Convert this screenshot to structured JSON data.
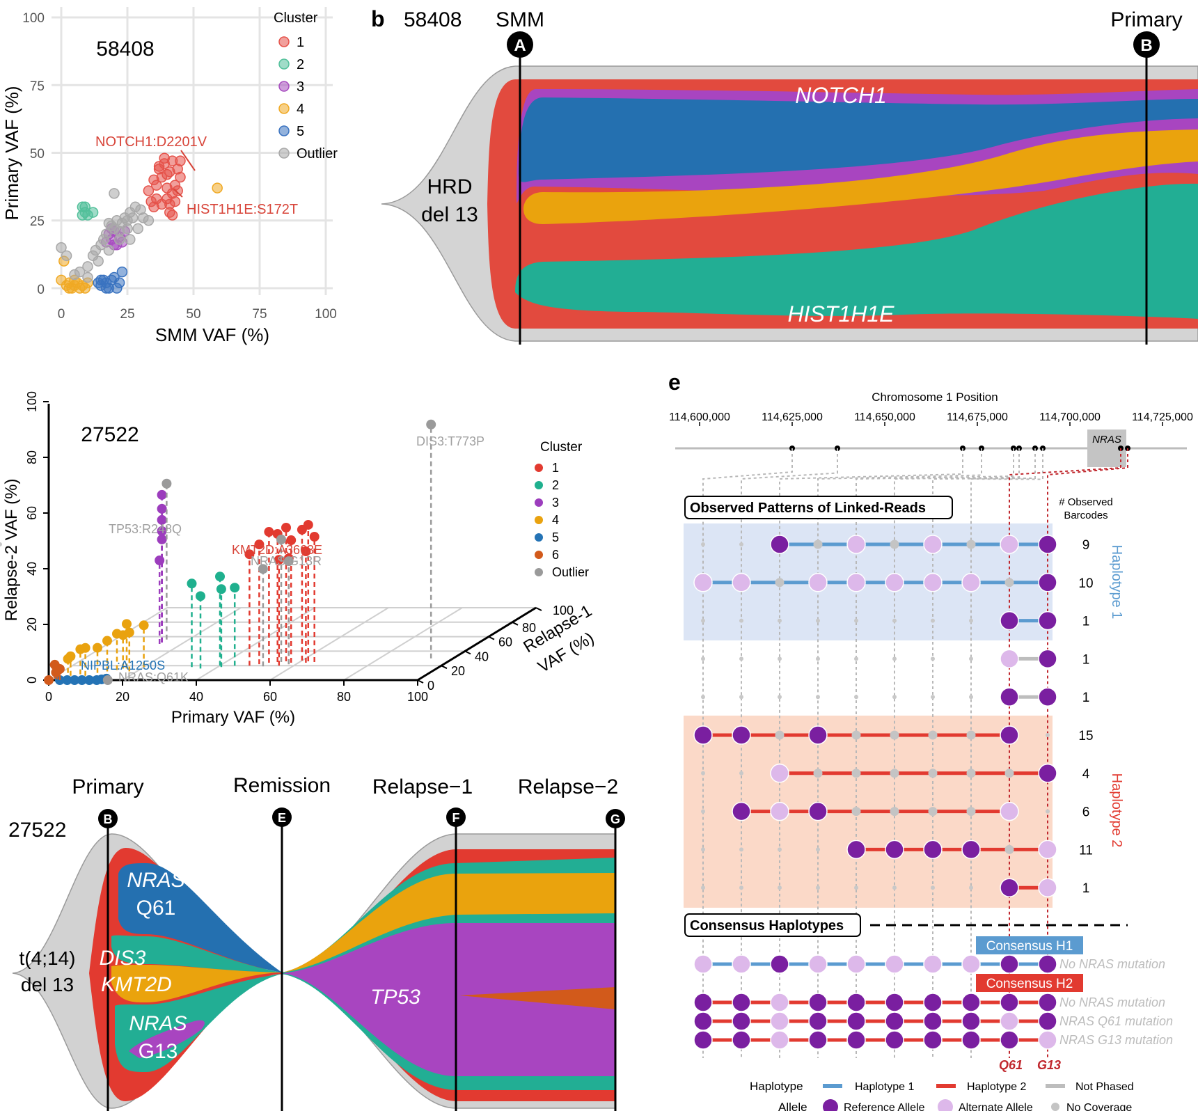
{
  "panel_a": {
    "sample_id": "58408",
    "xlabel": "SMM VAF (%)",
    "ylabel": "Primary VAF (%)",
    "ticks": [
      "0",
      "25",
      "50",
      "75",
      "100"
    ],
    "legend_title": "Cluster",
    "legend": [
      "1",
      "2",
      "3",
      "4",
      "5",
      "Outlier"
    ],
    "colors": [
      "#e5524a",
      "#52c09a",
      "#a84ec0",
      "#f0a924",
      "#3a73c0",
      "#a8a8a8"
    ],
    "annotations": [
      {
        "text": "NOTCH1:D2201V",
        "color": "#d8453a"
      },
      {
        "text": "HIST1H1E:S172T",
        "color": "#d8453a"
      }
    ]
  },
  "panel_b": {
    "letter": "b",
    "sample_id": "58408",
    "timepoints": [
      {
        "name": "SMM",
        "marker": "A"
      },
      {
        "name": "Primary",
        "marker": "B"
      }
    ],
    "founder": [
      "HRD",
      "del 13"
    ],
    "labels": [
      "NOTCH1",
      "HIST1H1E"
    ]
  },
  "panel_c": {
    "sample_id": "27522",
    "xlabel": "Primary VAF (%)",
    "ylabel": "Relapse-2 VAF (%)",
    "zlabel": [
      "Relapse-1",
      "VAF (%)"
    ],
    "x_ticks": [
      "0",
      "20",
      "40",
      "60",
      "80",
      "100"
    ],
    "y_ticks": [
      "0",
      "20",
      "40",
      "60",
      "80",
      "100"
    ],
    "z_ticks": [
      "0",
      "20",
      "40",
      "60",
      "80",
      "100"
    ],
    "legend_title": "Cluster",
    "legend": [
      "1",
      "2",
      "3",
      "4",
      "5",
      "6",
      "Outlier"
    ],
    "colors": [
      "#e23a30",
      "#1fb08e",
      "#9c3dbd",
      "#e9a20f",
      "#2473b5",
      "#d25a1b",
      "#9a9a9a"
    ],
    "annotations": [
      {
        "text": "DIS3:T773P",
        "color": "#a0a0a0"
      },
      {
        "text": "TP53:R248Q",
        "color": "#a0a0a0"
      },
      {
        "text": "KMT2D:A3663E",
        "color": "#d8453a"
      },
      {
        "text": "NRAS:G13R",
        "color": "#a0a0a0"
      },
      {
        "text": "NIPBL:A1250S",
        "color": "#2473b5"
      },
      {
        "text": "NRAS:Q61K",
        "color": "#a0a0a0"
      }
    ]
  },
  "panel_d": {
    "sample_id": "27522",
    "timepoints": [
      {
        "name": "Primary",
        "marker": "B"
      },
      {
        "name": "Remission",
        "marker": "E"
      },
      {
        "name": "Relapse−1",
        "marker": "F"
      },
      {
        "name": "Relapse−2",
        "marker": "G"
      }
    ],
    "founder": [
      "t(4;14)",
      "del 13"
    ],
    "labels": [
      "NRAS",
      "Q61",
      "DIS3",
      "KMT2D",
      "NRAS",
      "G13",
      "TP53"
    ]
  },
  "panel_e": {
    "letter": "e",
    "axis_title": "Chromosome 1 Position",
    "positions": [
      "114,600,000",
      "114,625,000",
      "114,650,000",
      "114,675,000",
      "114,700,000",
      "114,725,000"
    ],
    "gene": "NRAS",
    "observed_title": "Observed Patterns of Linked-Reads",
    "count_header": [
      "# Observed",
      "Barcodes"
    ],
    "haplotype_labels": [
      "Haplotype 1",
      "Haplotype 2"
    ],
    "consensus_title": "Consensus Haplotypes",
    "consensus_h1": "Consensus H1",
    "consensus_h2": "Consensus H2",
    "consensus_notes": [
      "No NRAS mutation",
      "No NRAS mutation",
      "NRAS Q61 mutation",
      "NRAS G13 mutation"
    ],
    "site_labels": [
      "Q61",
      "G13"
    ],
    "rows": [
      {
        "count": "9",
        "hap": 1,
        "pattern": "..RnAnAnAR."
      },
      {
        "count": "10",
        "hap": 1,
        "pattern": "AAnAAAAAnR"
      },
      {
        "count": "1",
        "hap": 1,
        "pattern": "........RR"
      },
      {
        "count": "1",
        "hap": 0,
        "pattern": "........AR"
      },
      {
        "count": "1",
        "hap": 0,
        "pattern": "........RR"
      },
      {
        "count": "15",
        "hap": 2,
        "pattern": "RRnRnnnnR."
      },
      {
        "count": "4",
        "hap": 2,
        "pattern": "..AnnnnnnR"
      },
      {
        "count": "6",
        "hap": 2,
        "pattern": ".RARnnnnA."
      },
      {
        "count": "11",
        "hap": 2,
        "pattern": "....RRRRnA"
      },
      {
        "count": "1",
        "hap": 2,
        "pattern": "........RA"
      }
    ],
    "consensus_rows": [
      {
        "hap": 1,
        "pattern": "AARAAAAARR"
      },
      {
        "hap": 2,
        "pattern": "RRARRRRRRR"
      },
      {
        "hap": 2,
        "pattern": "RRARRRRRAR"
      },
      {
        "hap": 2,
        "pattern": "RRARRRRRRA"
      }
    ],
    "legend": {
      "haplotype_title": "Haplotype",
      "haplotype_items": [
        "Haplotype 1",
        "Haplotype 2",
        "Not Phased"
      ],
      "allele_title": "Allele",
      "allele_items": [
        "Reference Allele",
        "Alternate Allele",
        "No Coverage"
      ]
    },
    "colors": {
      "h1": "#5b9bd0",
      "h2": "#e23a30",
      "np": "#bdbdbd",
      "ref": "#7a1fa0",
      "alt": "#ddb8ea",
      "nc": "#c4c4c4"
    }
  },
  "chart_data": [
    {
      "type": "scatter",
      "title": "58408",
      "xlabel": "SMM VAF (%)",
      "ylabel": "Primary VAF (%)",
      "xlim": [
        0,
        100
      ],
      "ylim": [
        0,
        100
      ],
      "grid": true,
      "legend_placement": "right",
      "series": [
        {
          "name": "1",
          "points": [
            [
              33,
              36
            ],
            [
              35,
              40
            ],
            [
              36,
              38
            ],
            [
              37,
              44
            ],
            [
              38,
              41
            ],
            [
              39,
              46
            ],
            [
              40,
              37
            ],
            [
              41,
              43
            ],
            [
              42,
              47
            ],
            [
              43,
              38
            ],
            [
              44,
              36
            ],
            [
              45,
              41
            ],
            [
              40,
              33
            ],
            [
              42,
              35
            ],
            [
              36,
              33
            ],
            [
              34,
              32
            ],
            [
              38,
              31
            ],
            [
              41,
              31
            ],
            [
              43,
              32
            ],
            [
              45,
              47
            ],
            [
              39,
              48
            ],
            [
              44,
              44
            ],
            [
              37,
              45
            ],
            [
              40,
              42
            ],
            [
              41,
              28
            ],
            [
              42,
              27
            ],
            [
              35,
              30
            ]
          ]
        },
        {
          "name": "2",
          "points": [
            [
              8,
              30
            ],
            [
              9,
              28
            ],
            [
              10,
              27
            ],
            [
              12,
              28
            ],
            [
              8,
              27
            ],
            [
              9,
              30
            ]
          ]
        },
        {
          "name": "3",
          "points": [
            [
              18,
              20
            ],
            [
              19,
              18
            ],
            [
              20,
              21
            ],
            [
              21,
              16
            ],
            [
              22,
              19
            ],
            [
              23,
              17
            ],
            [
              19,
              22
            ],
            [
              17,
              17
            ],
            [
              20,
              16
            ],
            [
              24,
              21
            ]
          ]
        },
        {
          "name": "4",
          "points": [
            [
              59,
              37
            ],
            [
              0,
              3
            ],
            [
              1,
              10
            ],
            [
              2,
              1
            ],
            [
              3,
              2
            ],
            [
              4,
              0
            ],
            [
              5,
              1
            ],
            [
              6,
              2
            ],
            [
              7,
              0
            ],
            [
              8,
              1
            ],
            [
              10,
              2
            ],
            [
              9,
              0
            ],
            [
              5,
              3
            ],
            [
              3,
              0
            ]
          ]
        },
        {
          "name": "5",
          "points": [
            [
              14,
              2
            ],
            [
              15,
              1
            ],
            [
              16,
              3
            ],
            [
              17,
              2
            ],
            [
              18,
              0
            ],
            [
              19,
              3
            ],
            [
              20,
              4
            ],
            [
              21,
              0
            ],
            [
              22,
              2
            ],
            [
              23,
              6
            ],
            [
              15,
              3
            ],
            [
              17,
              0
            ]
          ]
        },
        {
          "name": "Outlier",
          "points": [
            [
              0,
              15
            ],
            [
              2,
              12
            ],
            [
              5,
              5
            ],
            [
              7,
              6
            ],
            [
              10,
              8
            ],
            [
              12,
              12
            ],
            [
              13,
              14
            ],
            [
              15,
              16
            ],
            [
              16,
              18
            ],
            [
              17,
              20
            ],
            [
              18,
              24
            ],
            [
              19,
              23
            ],
            [
              20,
              22
            ],
            [
              21,
              25
            ],
            [
              22,
              21
            ],
            [
              23,
              24
            ],
            [
              24,
              26
            ],
            [
              25,
              25
            ],
            [
              26,
              28
            ],
            [
              27,
              26
            ],
            [
              28,
              30
            ],
            [
              29,
              22
            ],
            [
              30,
              29
            ],
            [
              31,
              26
            ],
            [
              20,
              35
            ],
            [
              25,
              22
            ],
            [
              22,
              18
            ],
            [
              18,
              14
            ],
            [
              14,
              10
            ],
            [
              33,
              25
            ],
            [
              26,
              18
            ],
            [
              10,
              4
            ]
          ]
        }
      ],
      "annotations": [
        "NOTCH1:D2201V",
        "HIST1H1E:S172T"
      ]
    },
    {
      "type": "area",
      "title": "58408",
      "x": [
        "SMM",
        "Primary"
      ],
      "labels": [
        "NOTCH1",
        "HIST1H1E"
      ]
    },
    {
      "type": "scatter",
      "title": "27522",
      "xlabel": "Primary VAF (%)",
      "ylabel": "Relapse-2 VAF (%)",
      "zlabel": "Relapse-1 VAF (%)",
      "xlim": [
        0,
        100
      ],
      "ylim": [
        0,
        100
      ],
      "zlim": [
        0,
        100
      ],
      "grid": true,
      "legend_placement": "right",
      "series": [
        {
          "name": "1",
          "points": [
            [
              48,
              40,
              20
            ],
            [
              50,
              43,
              22
            ],
            [
              52,
              47,
              24
            ],
            [
              54,
              46,
              25
            ],
            [
              56,
              48,
              26
            ],
            [
              58,
              44,
              24
            ],
            [
              60,
              47,
              27
            ],
            [
              62,
              49,
              26
            ],
            [
              64,
              45,
              25
            ],
            [
              56,
              38,
              20
            ],
            [
              58,
              38,
              22
            ],
            [
              62,
              40,
              24
            ]
          ]
        },
        {
          "name": "2",
          "points": [
            [
              33,
              30,
              18
            ],
            [
              36,
              26,
              16
            ],
            [
              40,
              32,
              20
            ],
            [
              41,
              28,
              18
            ],
            [
              44,
              28,
              20
            ]
          ]
        },
        {
          "name": "3",
          "points": [
            [
              14,
              30,
              50
            ],
            [
              14,
              37,
              52
            ],
            [
              14,
              40,
              52
            ],
            [
              14,
              44,
              52
            ],
            [
              14,
              48,
              52
            ],
            [
              14,
              53,
              52
            ]
          ]
        },
        {
          "name": "4",
          "points": [
            [
              2,
              5,
              10
            ],
            [
              4,
              7,
              6
            ],
            [
              6,
              9,
              8
            ],
            [
              8,
              10,
              6
            ],
            [
              10,
              9,
              10
            ],
            [
              12,
              11,
              12
            ],
            [
              14,
              13,
              14
            ],
            [
              15,
              12,
              16
            ],
            [
              16,
              16,
              16
            ],
            [
              18,
              14,
              12
            ],
            [
              20,
              15,
              18
            ]
          ]
        },
        {
          "name": "5",
          "points": [
            [
              5,
              0,
              0
            ],
            [
              7,
              0,
              0
            ],
            [
              9,
              0,
              0
            ],
            [
              11,
              0,
              0
            ],
            [
              13,
              0,
              0
            ],
            [
              14,
              0,
              1
            ],
            [
              15,
              0,
              2
            ],
            [
              3,
              0,
              0
            ]
          ]
        },
        {
          "name": "6",
          "points": [
            [
              0,
              0,
              0
            ],
            [
              1,
              5,
              2
            ],
            [
              2,
              3,
              1
            ],
            [
              3,
              4,
              0
            ],
            [
              1,
              2,
              3
            ]
          ]
        },
        {
          "name": "Outlier",
          "points": [
            [
              14,
              56,
              56
            ],
            [
              55,
              44,
              25
            ],
            [
              58,
              37,
              22
            ],
            [
              52,
              35,
              19
            ],
            [
              94,
              84,
              30
            ],
            [
              16,
              0,
              0
            ]
          ]
        }
      ],
      "annotations": [
        "DIS3:T773P",
        "TP53:R248Q",
        "KMT2D:A3663E",
        "NRAS:G13R",
        "NIPBL:A1250S",
        "NRAS:Q61K"
      ]
    },
    {
      "type": "area",
      "title": "27522",
      "x": [
        "Primary",
        "Remission",
        "Relapse−1",
        "Relapse−2"
      ],
      "labels": [
        "NRAS Q61",
        "DIS3",
        "KMT2D",
        "NRAS G13",
        "TP53"
      ]
    }
  ]
}
